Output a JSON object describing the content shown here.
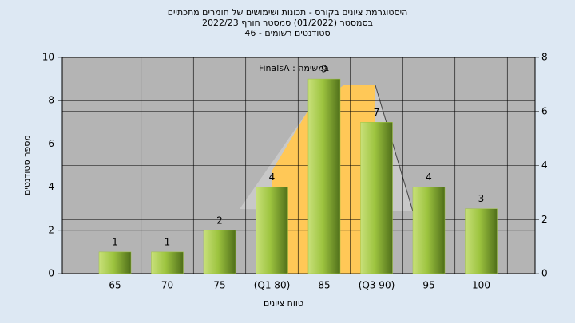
{
  "chart_data": {
    "type": "bar",
    "title": [
      "היסטוגרמת ציונים בקורס - תכונות ושימושים של חומרים מתכתיים",
      "בסמסטר (01/2022) סמסטר חורף 2022/23",
      "46 - סטודנטים רשומים"
    ],
    "annotation": "במשימה : FinalsA",
    "x_label": "טווח ציונים",
    "y_label": "מספר סטודנטים",
    "categories": [
      "65",
      "70",
      "75",
      "(Q1 80)",
      "85",
      "(Q3 90)",
      "95",
      "100"
    ],
    "values": [
      1,
      1,
      2,
      4,
      9,
      7,
      4,
      3
    ],
    "color": "#9dc43f",
    "ylim": [
      0,
      10
    ],
    "yticks": [
      0,
      2,
      4,
      6,
      8,
      10
    ],
    "y2lim": [
      0,
      8
    ],
    "y2ticks": [
      0,
      2,
      4,
      6,
      8
    ],
    "grid": true
  }
}
